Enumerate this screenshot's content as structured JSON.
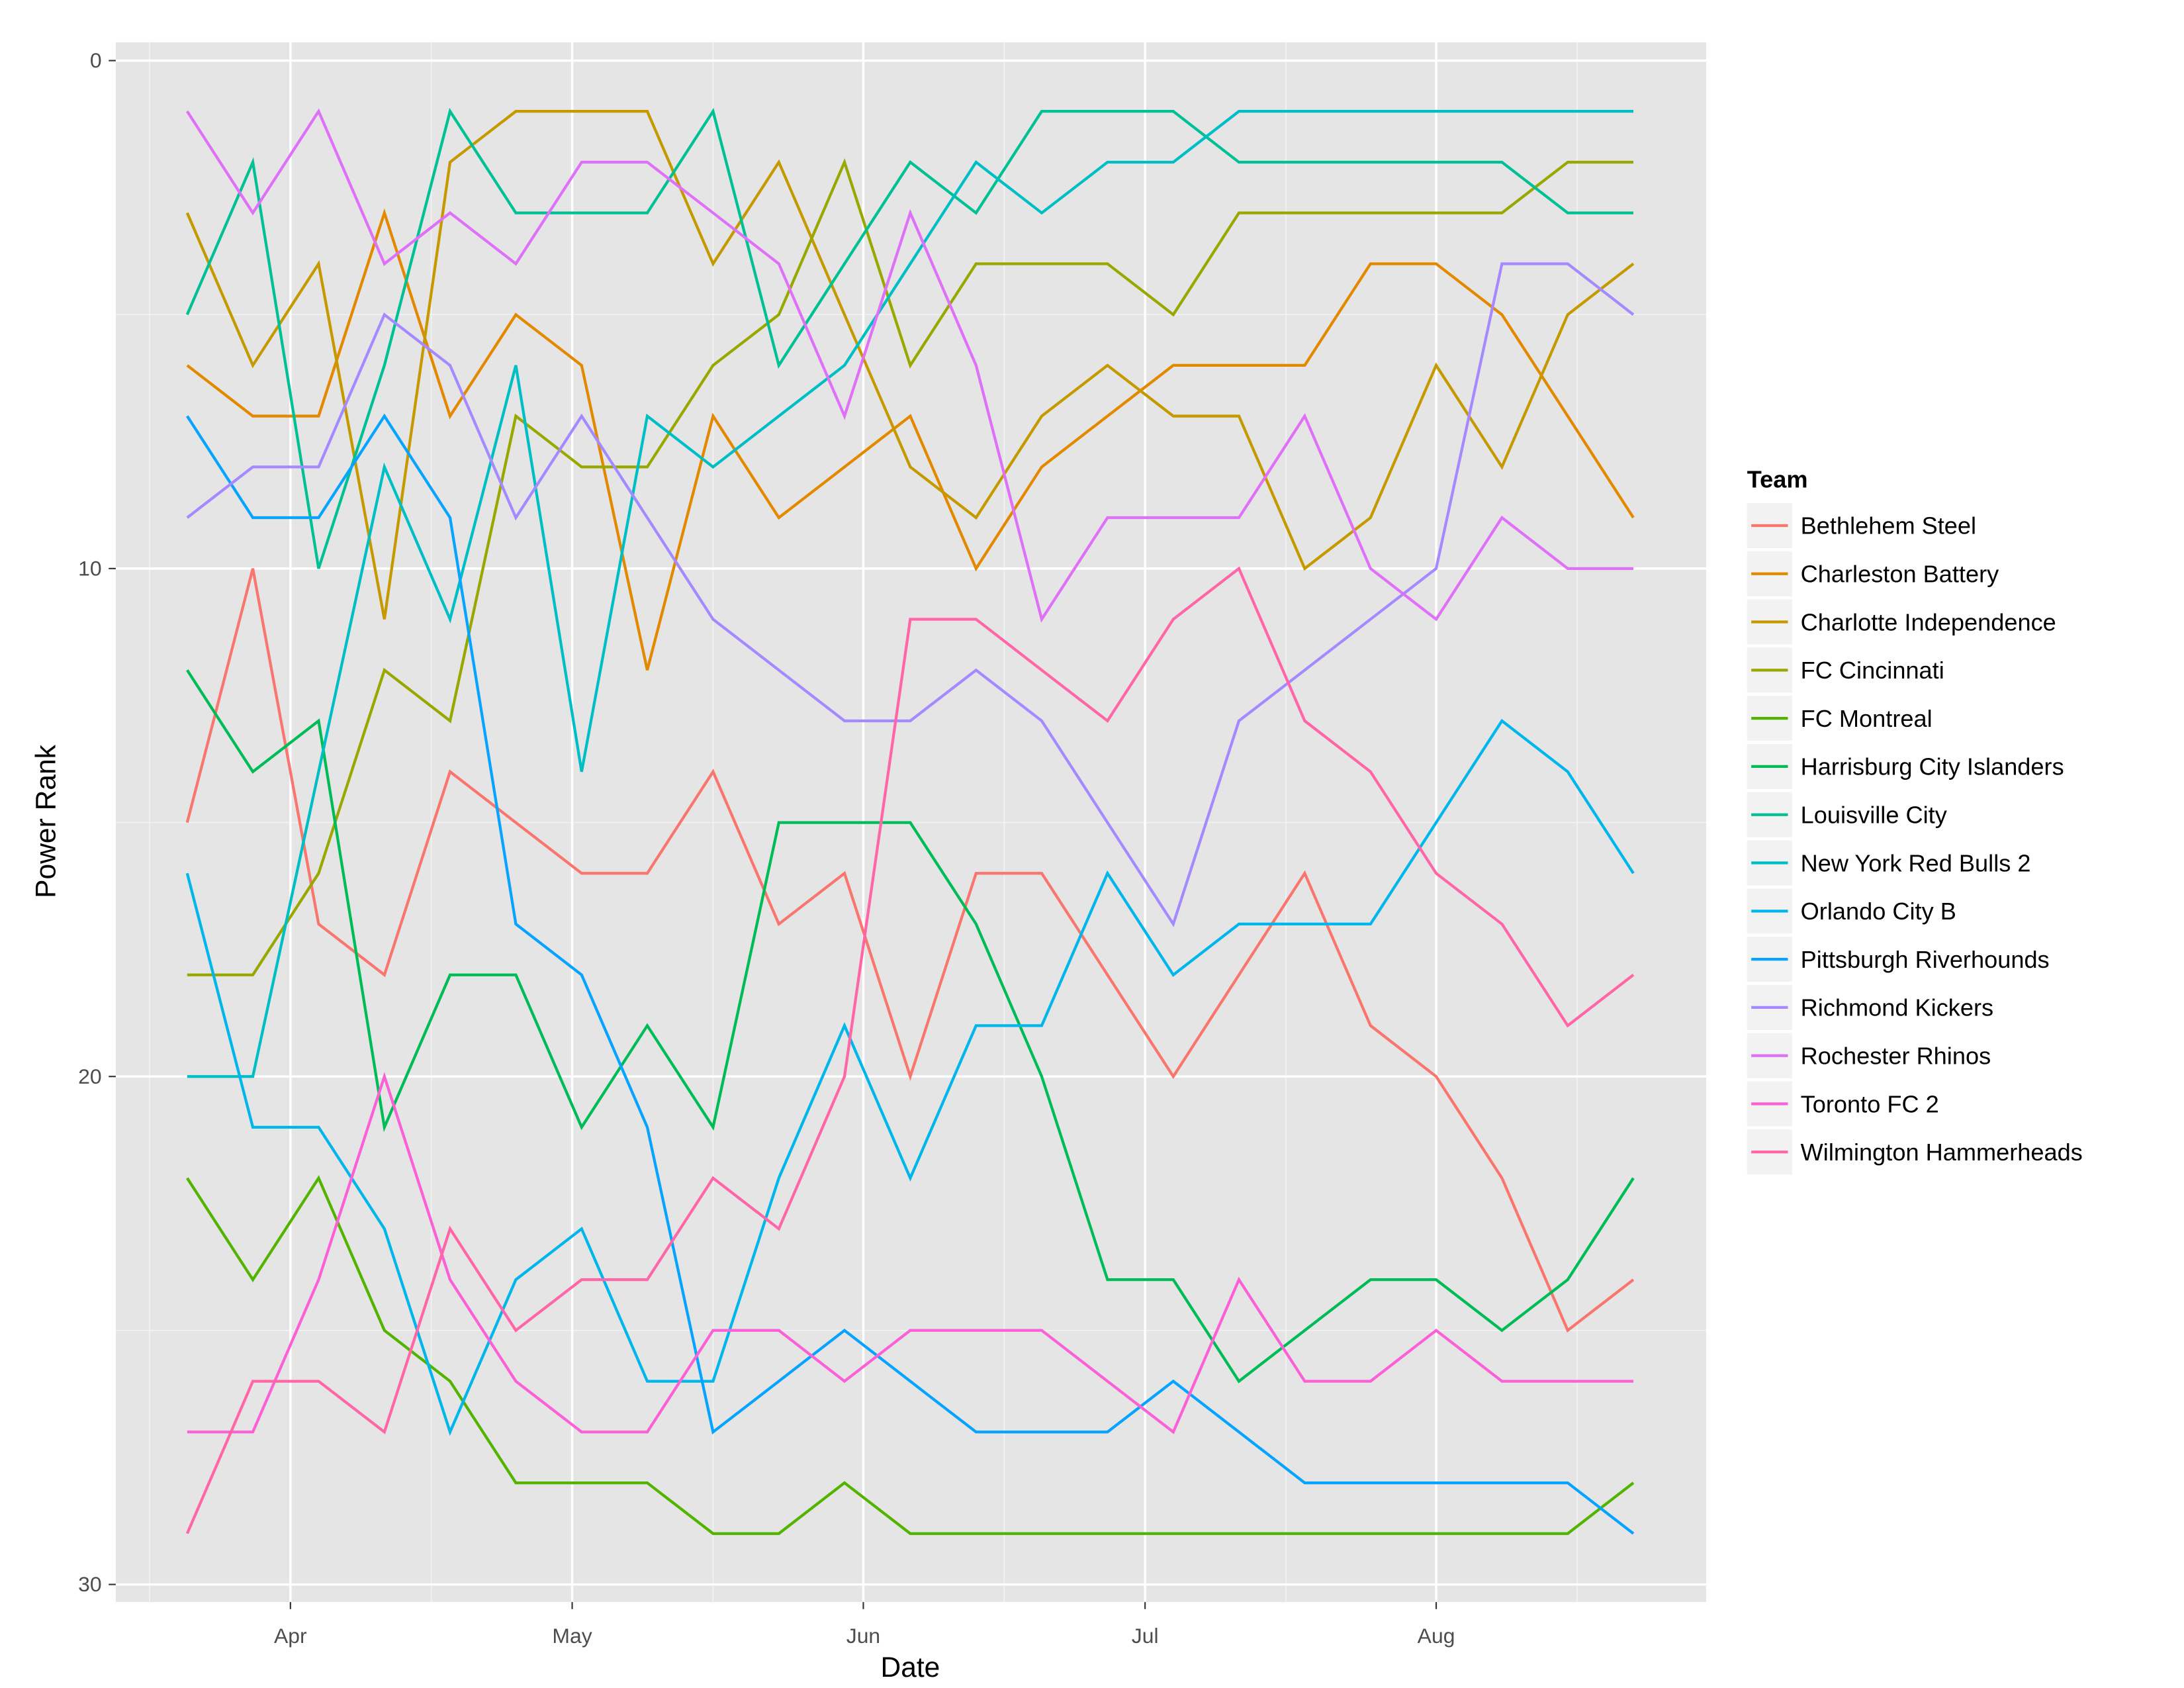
{
  "chart_data": {
    "type": "line",
    "title": "",
    "xlabel": "Date",
    "ylabel": "Power Rank",
    "y_reversed": true,
    "ylim": [
      30,
      0
    ],
    "y_ticks": [
      "0",
      "10",
      "20",
      "30"
    ],
    "x_ticks": [
      "Apr",
      "May",
      "Jun",
      "Jul",
      "Aug"
    ],
    "grid": true,
    "legend": {
      "title": "Team",
      "placement": "right"
    },
    "x": [
      "Mar 21",
      "Mar 28",
      "Apr 4",
      "Apr 11",
      "Apr 18",
      "Apr 25",
      "May 2",
      "May 9",
      "May 16",
      "May 23",
      "May 30",
      "Jun 6",
      "Jun 13",
      "Jun 20",
      "Jun 27",
      "Jul 4",
      "Jul 11",
      "Jul 18",
      "Jul 25",
      "Aug 1",
      "Aug 8",
      "Aug 15",
      "Aug 22"
    ],
    "series": [
      {
        "name": "Bethlehem Steel",
        "color": "#F8766D",
        "values": [
          15,
          10,
          17,
          18,
          14,
          15,
          16,
          16,
          14,
          17,
          16,
          20,
          16,
          16,
          18,
          20,
          18,
          16,
          19,
          20,
          22,
          25,
          24
        ]
      },
      {
        "name": "Charleston Battery",
        "color": "#E38900",
        "values": [
          6,
          7,
          7,
          3,
          7,
          5,
          6,
          12,
          7,
          9,
          8,
          7,
          10,
          8,
          7,
          6,
          6,
          6,
          4,
          4,
          5,
          7,
          9
        ]
      },
      {
        "name": "Charlotte Independence",
        "color": "#C49A00",
        "values": [
          3,
          6,
          4,
          11,
          2,
          1,
          1,
          1,
          4,
          2,
          5,
          8,
          9,
          7,
          6,
          7,
          7,
          10,
          9,
          6,
          8,
          5,
          4
        ]
      },
      {
        "name": "FC Cincinnati",
        "color": "#99A800",
        "values": [
          18,
          18,
          16,
          12,
          13,
          7,
          8,
          8,
          6,
          5,
          2,
          6,
          4,
          4,
          4,
          5,
          3,
          3,
          3,
          3,
          3,
          2,
          2
        ]
      },
      {
        "name": "FC Montreal",
        "color": "#53B400",
        "values": [
          22,
          24,
          22,
          25,
          26,
          28,
          28,
          28,
          29,
          29,
          28,
          29,
          29,
          29,
          29,
          29,
          29,
          29,
          29,
          29,
          29,
          29,
          28
        ]
      },
      {
        "name": "Harrisburg City Islanders",
        "color": "#00BC56",
        "values": [
          12,
          14,
          13,
          21,
          18,
          18,
          21,
          19,
          21,
          15,
          15,
          15,
          17,
          20,
          24,
          24,
          26,
          25,
          24,
          24,
          25,
          24,
          22
        ]
      },
      {
        "name": "Louisville City",
        "color": "#00C094",
        "values": [
          5,
          2,
          10,
          6,
          1,
          3,
          3,
          3,
          1,
          6,
          4,
          2,
          3,
          1,
          1,
          1,
          2,
          2,
          2,
          2,
          2,
          3,
          3
        ]
      },
      {
        "name": "New York Red Bulls 2",
        "color": "#00BFC4",
        "values": [
          20,
          20,
          14,
          8,
          11,
          6,
          14,
          7,
          8,
          7,
          6,
          4,
          2,
          3,
          2,
          2,
          1,
          1,
          1,
          1,
          1,
          1,
          1
        ]
      },
      {
        "name": "Orlando City B",
        "color": "#00B6EB",
        "values": [
          16,
          21,
          21,
          23,
          27,
          24,
          23,
          26,
          26,
          22,
          19,
          22,
          19,
          19,
          16,
          18,
          17,
          17,
          17,
          15,
          13,
          14,
          16
        ]
      },
      {
        "name": "Pittsburgh Riverhounds",
        "color": "#06A4FF",
        "values": [
          7,
          9,
          9,
          7,
          9,
          17,
          18,
          21,
          27,
          26,
          25,
          26,
          27,
          27,
          27,
          26,
          27,
          28,
          28,
          28,
          28,
          28,
          29
        ]
      },
      {
        "name": "Richmond Kickers",
        "color": "#A58AFF",
        "values": [
          9,
          8,
          8,
          5,
          6,
          9,
          7,
          9,
          11,
          12,
          13,
          13,
          12,
          13,
          15,
          17,
          13,
          12,
          11,
          10,
          4,
          4,
          5
        ]
      },
      {
        "name": "Rochester Rhinos",
        "color": "#DF70F8",
        "values": [
          1,
          3,
          1,
          4,
          3,
          4,
          2,
          2,
          3,
          4,
          7,
          3,
          6,
          11,
          9,
          9,
          9,
          7,
          10,
          11,
          9,
          10,
          10
        ]
      },
      {
        "name": "Toronto FC 2",
        "color": "#FB61D7",
        "values": [
          27,
          27,
          24,
          20,
          24,
          26,
          27,
          27,
          25,
          25,
          26,
          25,
          25,
          25,
          26,
          27,
          24,
          26,
          26,
          25,
          26,
          26,
          26
        ]
      },
      {
        "name": "Wilmington Hammerheads",
        "color": "#FF66A8",
        "values": [
          29,
          26,
          26,
          27,
          23,
          25,
          24,
          24,
          22,
          23,
          20,
          11,
          11,
          12,
          13,
          11,
          10,
          13,
          14,
          16,
          17,
          19,
          18
        ]
      }
    ]
  }
}
